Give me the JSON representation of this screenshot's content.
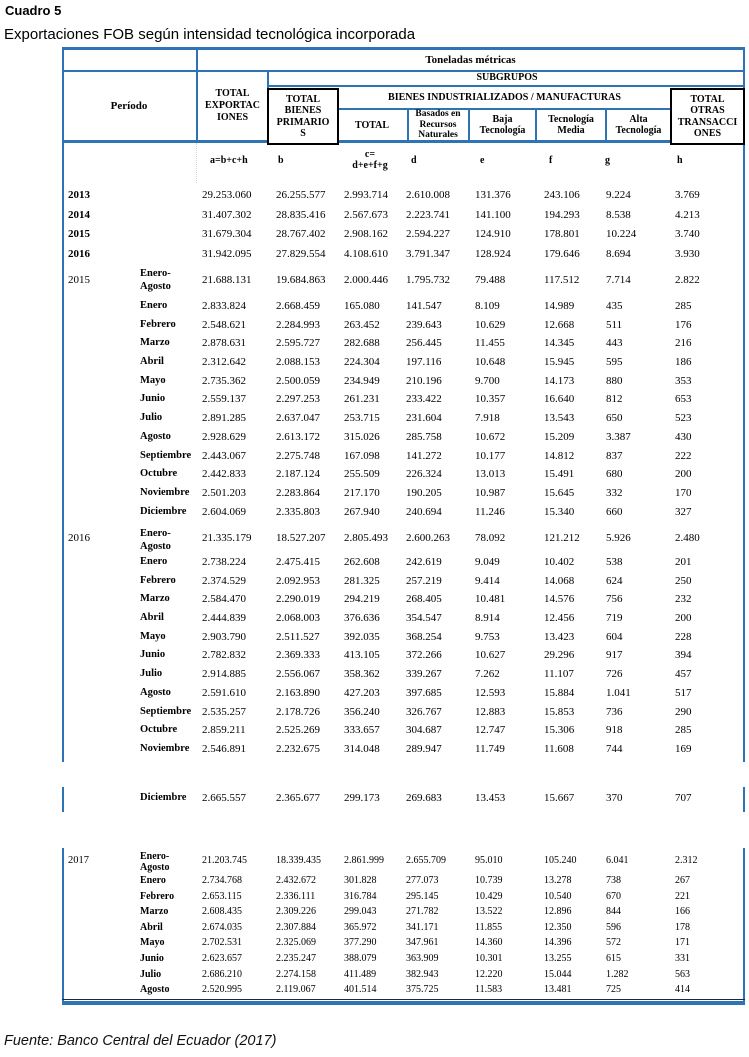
{
  "document": {
    "kicker": "Cuadro 5",
    "title": "Exportaciones FOB según intensidad tecnológica incorporada",
    "source": "Fuente: Banco Central del Ecuador (2017)"
  },
  "table": {
    "colors": {
      "border_blue": "#2e74b5",
      "border_black": "#000000"
    },
    "header": {
      "unit": "Toneladas métricas",
      "period": "Período",
      "subgroups": "SUBGRUPOS",
      "manufactures": "BIENES INDUSTRIALIZADOS / MANUFACTURAS",
      "total_exportaciones": "TOTAL\nEXPORTAC\nIONES",
      "total_bienes_primarios": "TOTAL\nBIENES\nPRIMARIO\nS",
      "total_manufacturas": "TOTAL",
      "basados_recursos_naturales": "Basados en\nRecursos\nNaturales",
      "baja_tecnologia": "Baja\nTecnología",
      "tecnologia_media": "Tecnología\nMedia",
      "alta_tecnologia": "Alta\nTecnología",
      "total_otras_transacciones": "TOTAL\nOTRAS\nTRANSACCI\nONES"
    },
    "formula_row": [
      "a=b+c+h",
      "b",
      "c=\nd+e+f+g",
      "d",
      "e",
      "f",
      "g",
      "h"
    ],
    "annual_rows": [
      {
        "year": "2013",
        "values": [
          "29.253.060",
          "26.255.577",
          "2.993.714",
          "2.610.008",
          "131.376",
          "243.106",
          "9.224",
          "3.769"
        ]
      },
      {
        "year": "2014",
        "values": [
          "31.407.302",
          "28.835.416",
          "2.567.673",
          "2.223.741",
          "141.100",
          "194.293",
          "8.538",
          "4.213"
        ]
      },
      {
        "year": "2015",
        "values": [
          "31.679.304",
          "28.767.402",
          "2.908.162",
          "2.594.227",
          "124.910",
          "178.801",
          "10.224",
          "3.740"
        ]
      },
      {
        "year": "2016",
        "values": [
          "31.942.095",
          "27.829.554",
          "4.108.610",
          "3.791.347",
          "128.924",
          "179.646",
          "8.694",
          "3.930"
        ]
      }
    ],
    "section_2015": {
      "year": "2015",
      "summary": {
        "month": "Enero-\nAgosto",
        "values": [
          "21.688.131",
          "19.684.863",
          "2.000.446",
          "1.795.732",
          "79.488",
          "117.512",
          "7.714",
          "2.822"
        ]
      },
      "months": [
        {
          "month": "Enero",
          "values": [
            "2.833.824",
            "2.668.459",
            "165.080",
            "141.547",
            "8.109",
            "14.989",
            "435",
            "285"
          ]
        },
        {
          "month": "Febrero",
          "values": [
            "2.548.621",
            "2.284.993",
            "263.452",
            "239.643",
            "10.629",
            "12.668",
            "511",
            "176"
          ]
        },
        {
          "month": "Marzo",
          "values": [
            "2.878.631",
            "2.595.727",
            "282.688",
            "256.445",
            "11.455",
            "14.345",
            "443",
            "216"
          ]
        },
        {
          "month": "Abril",
          "values": [
            "2.312.642",
            "2.088.153",
            "224.304",
            "197.116",
            "10.648",
            "15.945",
            "595",
            "186"
          ]
        },
        {
          "month": "Mayo",
          "values": [
            "2.735.362",
            "2.500.059",
            "234.949",
            "210.196",
            "9.700",
            "14.173",
            "880",
            "353"
          ]
        },
        {
          "month": "Junio",
          "values": [
            "2.559.137",
            "2.297.253",
            "261.231",
            "233.422",
            "10.357",
            "16.640",
            "812",
            "653"
          ]
        },
        {
          "month": "Julio",
          "values": [
            "2.891.285",
            "2.637.047",
            "253.715",
            "231.604",
            "7.918",
            "13.543",
            "650",
            "523"
          ]
        },
        {
          "month": "Agosto",
          "values": [
            "2.928.629",
            "2.613.172",
            "315.026",
            "285.758",
            "10.672",
            "15.209",
            "3.387",
            "430"
          ]
        },
        {
          "month": "Septiembre",
          "values": [
            "2.443.067",
            "2.275.748",
            "167.098",
            "141.272",
            "10.177",
            "14.812",
            "837",
            "222"
          ]
        },
        {
          "month": "Octubre",
          "values": [
            "2.442.833",
            "2.187.124",
            "255.509",
            "226.324",
            "13.013",
            "15.491",
            "680",
            "200"
          ]
        },
        {
          "month": "Noviembre",
          "values": [
            "2.501.203",
            "2.283.864",
            "217.170",
            "190.205",
            "10.987",
            "15.645",
            "332",
            "170"
          ]
        },
        {
          "month": "Diciembre",
          "values": [
            "2.604.069",
            "2.335.803",
            "267.940",
            "240.694",
            "11.246",
            "15.340",
            "660",
            "327"
          ]
        }
      ]
    },
    "section_2016": {
      "year": "2016",
      "summary": {
        "month": "Enero-\nAgosto",
        "values": [
          "21.335.179",
          "18.527.207",
          "2.805.493",
          "2.600.263",
          "78.092",
          "121.212",
          "5.926",
          "2.480"
        ]
      },
      "months": [
        {
          "month": "Enero",
          "values": [
            "2.738.224",
            "2.475.415",
            "262.608",
            "242.619",
            "9.049",
            "10.402",
            "538",
            "201"
          ]
        },
        {
          "month": "Febrero",
          "values": [
            "2.374.529",
            "2.092.953",
            "281.325",
            "257.219",
            "9.414",
            "14.068",
            "624",
            "250"
          ]
        },
        {
          "month": "Marzo",
          "values": [
            "2.584.470",
            "2.290.019",
            "294.219",
            "268.405",
            "10.481",
            "14.576",
            "756",
            "232"
          ]
        },
        {
          "month": "Abril",
          "values": [
            "2.444.839",
            "2.068.003",
            "376.636",
            "354.547",
            "8.914",
            "12.456",
            "719",
            "200"
          ]
        },
        {
          "month": "Mayo",
          "values": [
            "2.903.790",
            "2.511.527",
            "392.035",
            "368.254",
            "9.753",
            "13.423",
            "604",
            "228"
          ]
        },
        {
          "month": "Junio",
          "values": [
            "2.782.832",
            "2.369.333",
            "413.105",
            "372.266",
            "10.627",
            "29.296",
            "917",
            "394"
          ]
        },
        {
          "month": "Julio",
          "values": [
            "2.914.885",
            "2.556.067",
            "358.362",
            "339.267",
            "7.262",
            "11.107",
            "726",
            "457"
          ]
        },
        {
          "month": "Agosto",
          "values": [
            "2.591.610",
            "2.163.890",
            "427.203",
            "397.685",
            "12.593",
            "15.884",
            "1.041",
            "517"
          ]
        },
        {
          "month": "Septiembre",
          "values": [
            "2.535.257",
            "2.178.726",
            "356.240",
            "326.767",
            "12.883",
            "15.853",
            "736",
            "290"
          ]
        },
        {
          "month": "Octubre",
          "values": [
            "2.859.211",
            "2.525.269",
            "333.657",
            "304.687",
            "12.747",
            "15.306",
            "918",
            "285"
          ]
        },
        {
          "month": "Noviembre",
          "values": [
            "2.546.891",
            "2.232.675",
            "314.048",
            "289.947",
            "11.749",
            "11.608",
            "744",
            "169"
          ]
        }
      ]
    },
    "december_2016": {
      "month": "Diciembre",
      "values": [
        "2.665.557",
        "2.365.677",
        "299.173",
        "269.683",
        "13.453",
        "15.667",
        "370",
        "707"
      ]
    },
    "section_2017": {
      "year": "2017",
      "summary": {
        "month": "Enero-\nAgosto",
        "values": [
          "21.203.745",
          "18.339.435",
          "2.861.999",
          "2.655.709",
          "95.010",
          "105.240",
          "6.041",
          "2.312"
        ]
      },
      "months": [
        {
          "month": "Enero",
          "values": [
            "2.734.768",
            "2.432.672",
            "301.828",
            "277.073",
            "10.739",
            "13.278",
            "738",
            "267"
          ]
        },
        {
          "month": "Febrero",
          "values": [
            "2.653.115",
            "2.336.111",
            "316.784",
            "295.145",
            "10.429",
            "10.540",
            "670",
            "221"
          ]
        },
        {
          "month": "Marzo",
          "values": [
            "2.608.435",
            "2.309.226",
            "299.043",
            "271.782",
            "13.522",
            "12.896",
            "844",
            "166"
          ]
        },
        {
          "month": "Abril",
          "values": [
            "2.674.035",
            "2.307.884",
            "365.972",
            "341.171",
            "11.855",
            "12.350",
            "596",
            "178"
          ]
        },
        {
          "month": "Mayo",
          "values": [
            "2.702.531",
            "2.325.069",
            "377.290",
            "347.961",
            "14.360",
            "14.396",
            "572",
            "171"
          ]
        },
        {
          "month": "Junio",
          "values": [
            "2.623.657",
            "2.235.247",
            "388.079",
            "363.909",
            "10.301",
            "13.255",
            "615",
            "331"
          ]
        },
        {
          "month": "Julio",
          "values": [
            "2.686.210",
            "2.274.158",
            "411.489",
            "382.943",
            "12.220",
            "15.044",
            "1.282",
            "563"
          ]
        },
        {
          "month": "Agosto",
          "values": [
            "2.520.995",
            "2.119.067",
            "401.514",
            "375.725",
            "11.583",
            "13.481",
            "725",
            "414"
          ]
        }
      ]
    }
  }
}
